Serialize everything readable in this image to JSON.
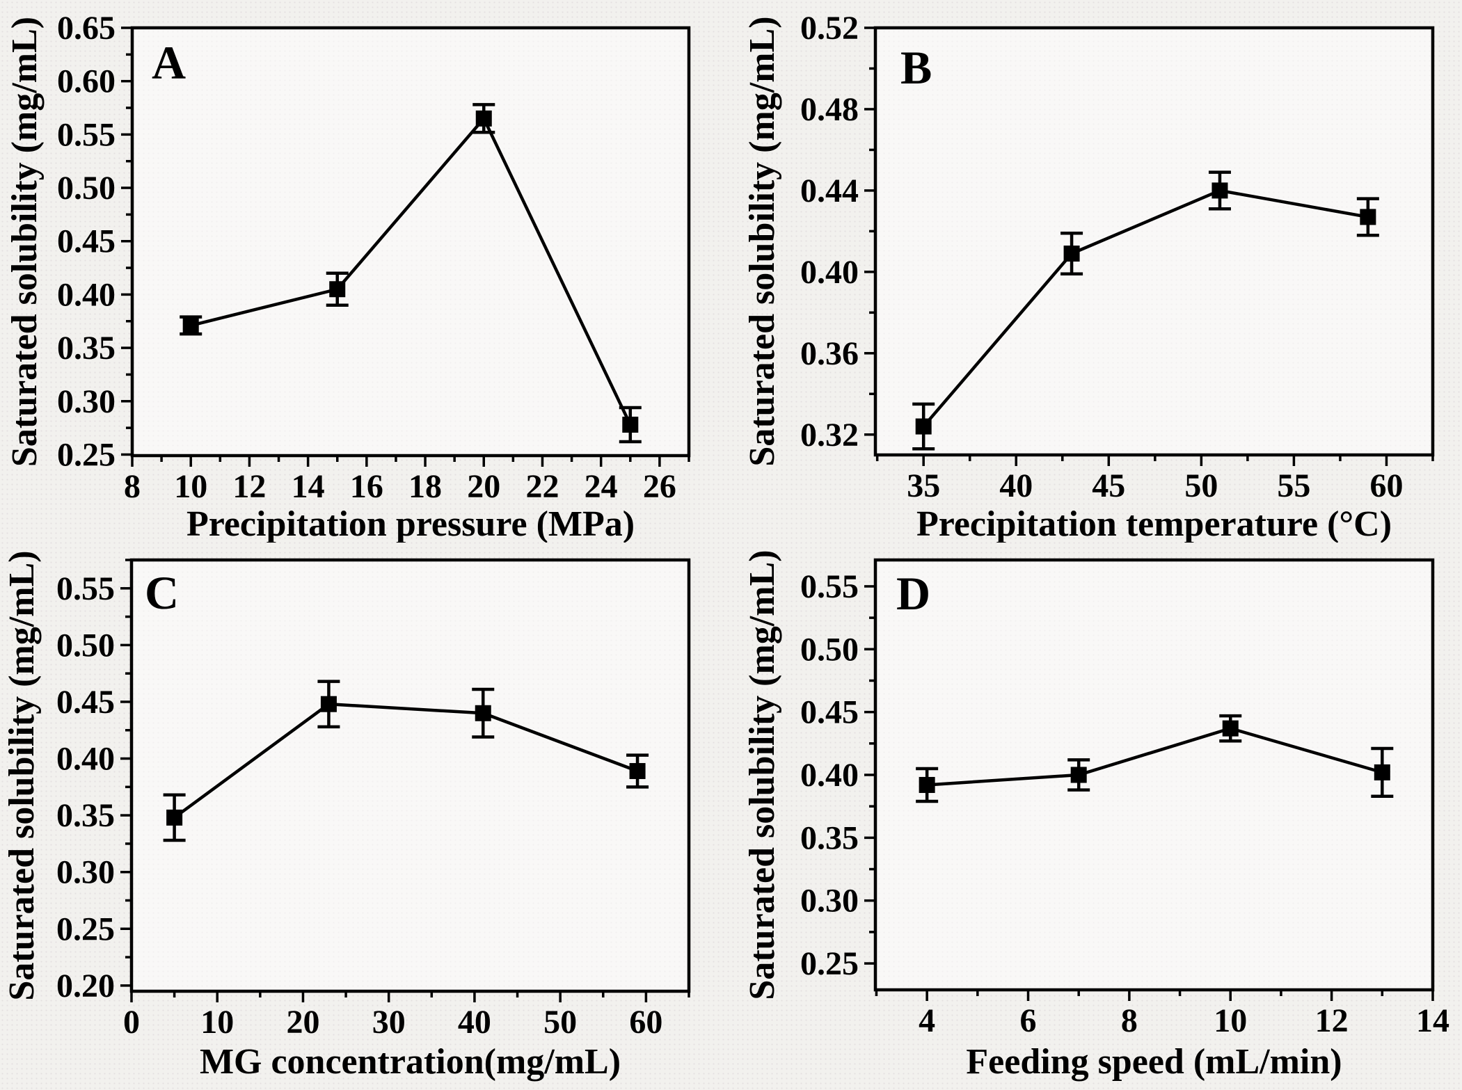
{
  "page": {
    "background": "#f2f1ee",
    "plot_background": "#f8f7f5",
    "axis_color": "#000000",
    "series_color": "#000000"
  },
  "chart_data": [
    {
      "id": "A",
      "type": "line",
      "panel_letter": "A",
      "xlabel": "Precipitation pressure (MPa)",
      "ylabel": "Saturated solubility (mg/mL)",
      "marker": "square",
      "error_bars": true,
      "grid": false,
      "legend": null,
      "x": [
        10,
        15,
        20,
        25
      ],
      "y": [
        0.371,
        0.405,
        0.565,
        0.278
      ],
      "yerr": [
        0.008,
        0.015,
        0.013,
        0.016
      ],
      "xlim": [
        8,
        27
      ],
      "ylim": [
        0.249,
        0.65
      ],
      "xticks": [
        8,
        10,
        12,
        14,
        16,
        18,
        20,
        22,
        24,
        26
      ],
      "xtick_labels": [
        "8",
        "10",
        "12",
        "14",
        "16",
        "18",
        "20",
        "22",
        "24",
        "26"
      ],
      "yticks": [
        0.25,
        0.3,
        0.35,
        0.4,
        0.45,
        0.5,
        0.55,
        0.6,
        0.65
      ],
      "ytick_labels": [
        "0.25",
        "0.30",
        "0.35",
        "0.40",
        "0.45",
        "0.50",
        "0.55",
        "0.60",
        "0.65"
      ],
      "x_minor_step": 1,
      "y_minor_step": 0.025
    },
    {
      "id": "B",
      "type": "line",
      "panel_letter": "B",
      "xlabel": "Precipitation temperature (°C)",
      "ylabel": "Saturated solubility (mg/mL)",
      "marker": "square",
      "error_bars": true,
      "grid": false,
      "legend": null,
      "x": [
        35,
        43,
        51,
        59
      ],
      "y": [
        0.324,
        0.409,
        0.44,
        0.427
      ],
      "yerr": [
        0.011,
        0.01,
        0.009,
        0.009
      ],
      "xlim": [
        32.4,
        62.5
      ],
      "ylim": [
        0.31,
        0.52
      ],
      "xticks": [
        35,
        40,
        45,
        50,
        55,
        60
      ],
      "xtick_labels": [
        "35",
        "40",
        "45",
        "50",
        "55",
        "60"
      ],
      "yticks": [
        0.32,
        0.36,
        0.4,
        0.44,
        0.48,
        0.52
      ],
      "ytick_labels": [
        "0.32",
        "0.36",
        "0.40",
        "0.44",
        "0.48",
        "0.52"
      ],
      "x_minor_step": 2.5,
      "y_minor_step": 0.02
    },
    {
      "id": "C",
      "type": "line",
      "panel_letter": "C",
      "xlabel": "MG concentration(mg/mL)",
      "ylabel": "Saturated solubility (mg/mL)",
      "marker": "square",
      "error_bars": true,
      "grid": false,
      "legend": null,
      "x": [
        5,
        23,
        41,
        59
      ],
      "y": [
        0.348,
        0.448,
        0.44,
        0.389
      ],
      "yerr": [
        0.02,
        0.02,
        0.021,
        0.014
      ],
      "xlim": [
        0,
        65
      ],
      "ylim": [
        0.195,
        0.575
      ],
      "xticks": [
        0,
        10,
        20,
        30,
        40,
        50,
        60
      ],
      "xtick_labels": [
        "0",
        "10",
        "20",
        "30",
        "40",
        "50",
        "60"
      ],
      "yticks": [
        0.2,
        0.25,
        0.3,
        0.35,
        0.4,
        0.45,
        0.5,
        0.55
      ],
      "ytick_labels": [
        "0.20",
        "0.25",
        "0.30",
        "0.35",
        "0.40",
        "0.45",
        "0.50",
        "0.55"
      ],
      "x_minor_step": 5,
      "y_minor_step": 0.025
    },
    {
      "id": "D",
      "type": "line",
      "panel_letter": "D",
      "xlabel": "Feeding speed (mL/min)",
      "ylabel": "Saturated solubility (mg/mL)",
      "marker": "square",
      "error_bars": true,
      "grid": false,
      "legend": null,
      "x": [
        4,
        7,
        10,
        13
      ],
      "y": [
        0.392,
        0.4,
        0.437,
        0.402
      ],
      "yerr": [
        0.013,
        0.012,
        0.01,
        0.019
      ],
      "xlim": [
        2.98,
        14
      ],
      "ylim": [
        0.229,
        0.571
      ],
      "xticks": [
        4,
        6,
        8,
        10,
        12,
        14
      ],
      "xtick_labels": [
        "4",
        "6",
        "8",
        "10",
        "12",
        "14"
      ],
      "yticks": [
        0.25,
        0.3,
        0.35,
        0.4,
        0.45,
        0.5,
        0.55
      ],
      "ytick_labels": [
        "0.25",
        "0.30",
        "0.35",
        "0.40",
        "0.45",
        "0.50",
        "0.55"
      ],
      "x_minor_step": 1,
      "y_minor_step": 0.025
    }
  ]
}
